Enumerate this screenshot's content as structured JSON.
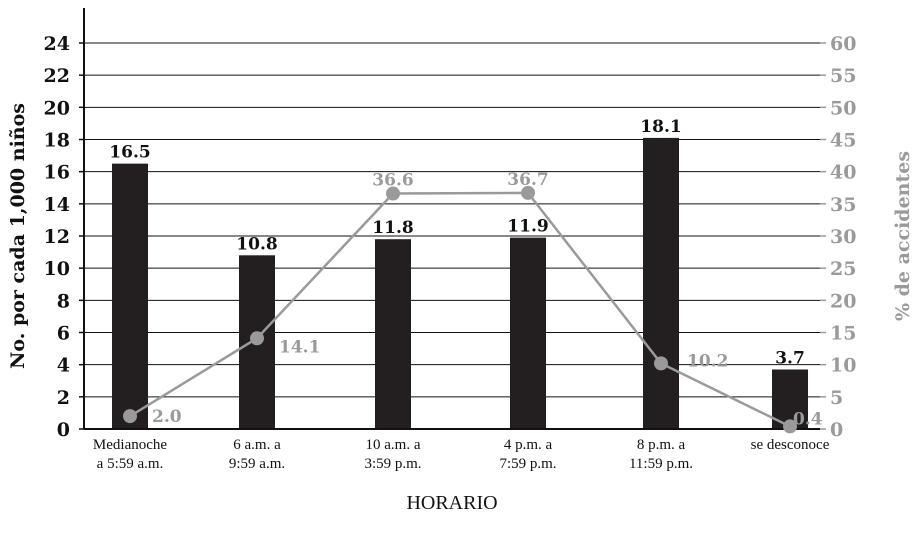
{
  "chart_data": {
    "type": "bar",
    "categories": [
      [
        "Medianoche",
        "a 5:59 a.m."
      ],
      [
        "6 a.m. a",
        "9:59 a.m."
      ],
      [
        "10 a.m. a",
        "3:59 p.m."
      ],
      [
        "4 p.m. a",
        "7:59 p.m."
      ],
      [
        "8 p.m. a",
        "11:59 p.m."
      ],
      [
        "se desconoce"
      ]
    ],
    "series": [
      {
        "type": "bar",
        "axis": "left",
        "color": "#231f20",
        "values": [
          16.5,
          10.8,
          11.8,
          11.9,
          18.1,
          3.7
        ],
        "labels": [
          "16.5",
          "10.8",
          "11.8",
          "11.9",
          "18.1",
          "3.7"
        ]
      },
      {
        "type": "line",
        "axis": "right",
        "color": "#9a9a9a",
        "values": [
          2.0,
          14.1,
          36.6,
          36.7,
          10.2,
          0.4
        ],
        "labels": [
          "2.0",
          "14.1",
          "36.6",
          "36.7",
          "10.2",
          "0.4"
        ]
      }
    ],
    "xlabel": "HORARIO",
    "ylabel": "No. por cada 1,000 niños",
    "ylabel_right": "% de accidentes",
    "ylim": [
      0,
      24
    ],
    "ylim_right": [
      0,
      60
    ],
    "yticks": [
      "0",
      "2",
      "4",
      "6",
      "8",
      "10",
      "12",
      "14",
      "16",
      "18",
      "20",
      "22",
      "24"
    ],
    "yticks_right": [
      "0",
      "5",
      "10",
      "15",
      "20",
      "25",
      "30",
      "35",
      "40",
      "45",
      "50",
      "55",
      "60"
    ],
    "grid": true
  }
}
